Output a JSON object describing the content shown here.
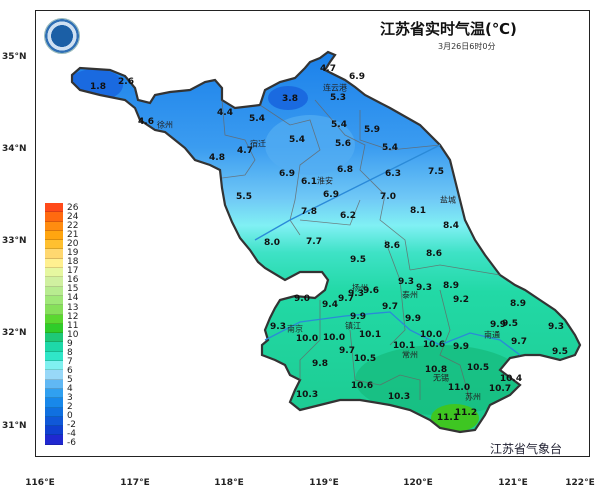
{
  "title": "江苏省实时气温(℃)",
  "subtitle": "3月26日6时0分",
  "footer": "江苏省气象台",
  "logo_icon": "jiangsu-meteorological-bureau-logo",
  "lat_labels": [
    "35°N",
    "34°N",
    "33°N",
    "32°N",
    "31°N"
  ],
  "lon_labels": [
    "116°E",
    "117°E",
    "118°E",
    "119°E",
    "120°E",
    "121°E",
    "122°E"
  ],
  "legend": {
    "labels": [
      "26",
      "24",
      "22",
      "21",
      "20",
      "19",
      "18",
      "17",
      "16",
      "15",
      "14",
      "13",
      "12",
      "11",
      "10",
      "9",
      "8",
      "7",
      "6",
      "5",
      "4",
      "3",
      "2",
      "0",
      "-2",
      "-4",
      "-6"
    ],
    "colors": [
      "#ff4a1a",
      "#ff6a10",
      "#ff8c10",
      "#ffa510",
      "#ffc030",
      "#ffd870",
      "#fff090",
      "#e6f7a0",
      "#d0f0a0",
      "#b8ec90",
      "#a0e878",
      "#86e05a",
      "#5ad830",
      "#2fcc2a",
      "#1ec878",
      "#1ed8a8",
      "#30e6c8",
      "#80f0f0",
      "#98d8f8",
      "#60b8f4",
      "#30a0f0",
      "#1888ea",
      "#1070e0",
      "#1058d8",
      "#1040d0",
      "#2028d0",
      "#4010d0"
    ]
  },
  "cities": [
    "徐州",
    "连云港",
    "宿迁",
    "淮安",
    "盐城",
    "扬州",
    "泰州",
    "南京",
    "镇江",
    "南通",
    "常州",
    "无锡",
    "苏州"
  ],
  "stations": [
    "1.8",
    "2.6",
    "4.6",
    "4.4",
    "5.4",
    "3.8",
    "4.7",
    "6.9",
    "5.3",
    "5.4",
    "5.9",
    "5.4",
    "5.6",
    "4.7",
    "5.4",
    "4.8",
    "6.9",
    "6.8",
    "6.3",
    "7.5",
    "6.1",
    "5.5",
    "6.9",
    "7.0",
    "8.1",
    "7.8",
    "6.2",
    "8.4",
    "8.0",
    "7.7",
    "8.6",
    "8.6",
    "9.5",
    "9.3",
    "9.3",
    "8.9",
    "9.6",
    "9.3",
    "9.7",
    "9.0",
    "9.2",
    "9.4",
    "8.9",
    "9.7",
    "9.9",
    "9.9",
    "9.3",
    "9.9",
    "9.5",
    "9.3",
    "10.1",
    "10.0",
    "10.0",
    "10.0",
    "10.6",
    "10.1",
    "9.7",
    "9.9",
    "9.7",
    "9.5",
    "10.5",
    "9.8",
    "10.8",
    "10.5",
    "10.4",
    "11.0",
    "10.6",
    "10.7",
    "10.3",
    "10.3",
    "11.2",
    "11.1"
  ]
}
